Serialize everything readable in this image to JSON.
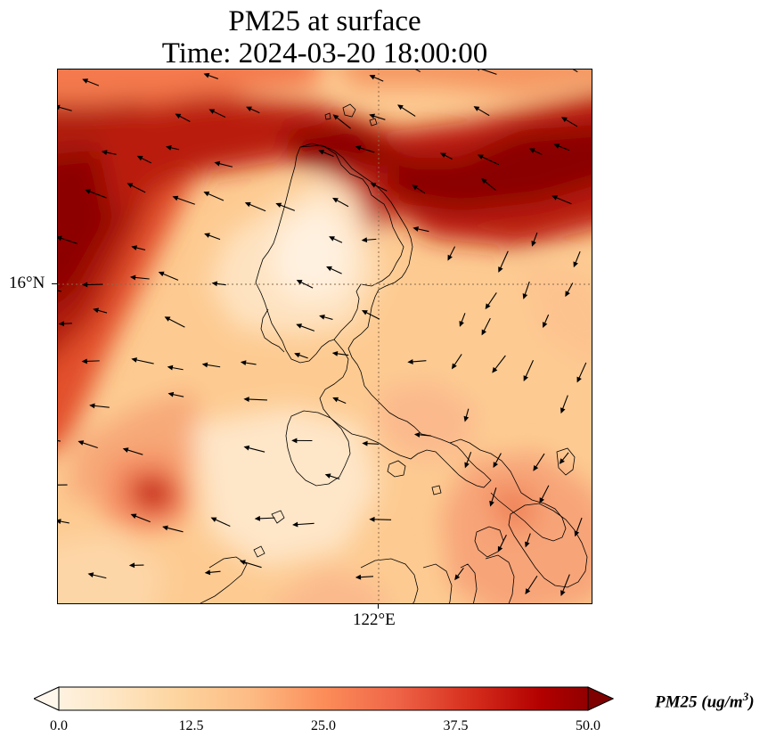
{
  "title": {
    "line1": "PM25 at surface",
    "line2": "Time: 2024-03-20 18:00:00"
  },
  "axes": {
    "lat_tick_label": "16°N",
    "lon_tick_label": "122°E",
    "gridlines": "dotted",
    "gridline_color": "#8b6a4a"
  },
  "colorbar": {
    "label_prefix": "PM25 (ug/m",
    "label_sup": "3",
    "label_suffix": ")",
    "min": 0.0,
    "max": 50.0,
    "ticks": [
      "0.0",
      "12.5",
      "25.0",
      "37.5",
      "50.0"
    ],
    "extend": "both",
    "colormap": "OrRd",
    "stops": [
      "#fff7ec",
      "#fee8c8",
      "#fdd49e",
      "#fdbb84",
      "#fc8d59",
      "#ef6548",
      "#d7301f",
      "#b30000",
      "#7f0000"
    ]
  },
  "field_description": "Surface PM2.5 concentration over Luzon, Philippines, with wind vectors and coastlines"
}
